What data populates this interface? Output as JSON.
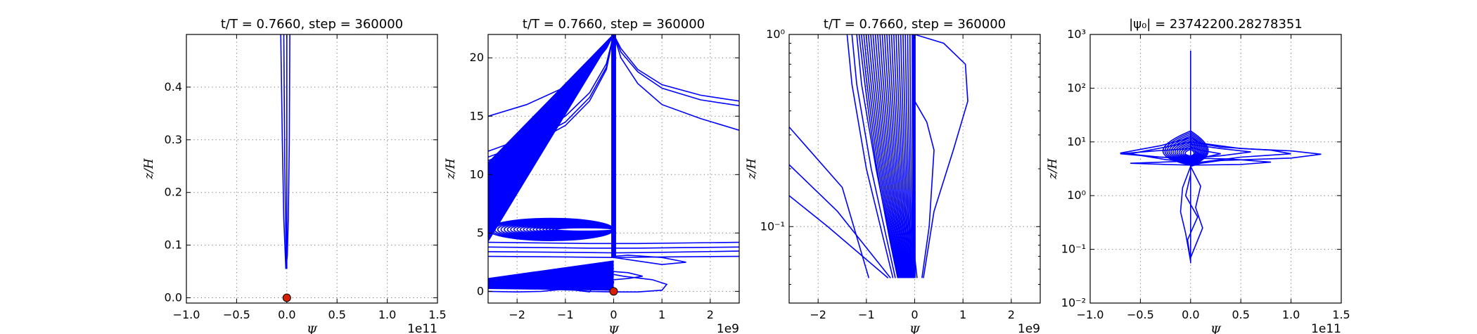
{
  "chart_data": [
    {
      "id": "p1",
      "type": "line",
      "title": "t/T = 0.7660, step = 360000",
      "xlabel": "Ψ",
      "ylabel": "z/H",
      "xscale": "linear",
      "yscale": "linear",
      "x_multiplier": "1e11",
      "xlim": [
        -1.0,
        1.5
      ],
      "ylim": [
        -0.01,
        0.5
      ],
      "xticks": [
        -1.0,
        -0.5,
        0.0,
        0.5,
        1.0,
        1.5
      ],
      "xticklabels": [
        "−1.0",
        "−0.5",
        "0.0",
        "0.5",
        "1.0",
        "1.5"
      ],
      "yticks": [
        0.0,
        0.1,
        0.2,
        0.3,
        0.4
      ],
      "yticklabels": [
        "0.0",
        "0.1",
        "0.2",
        "0.3",
        "0.4"
      ],
      "grid": true,
      "series_color": "#0000ff",
      "series": [
        {
          "x": [
            -0.06,
            -0.045,
            -0.03,
            -0.01
          ],
          "y": [
            0.5,
            0.3,
            0.15,
            0.055
          ]
        },
        {
          "x": [
            0.03,
            0.025,
            0.015,
            0.005,
            -0.01
          ],
          "y": [
            0.5,
            0.3,
            0.15,
            0.08,
            0.055
          ]
        },
        {
          "x": [
            -0.03,
            -0.02,
            -0.005
          ],
          "y": [
            0.5,
            0.25,
            0.06
          ]
        },
        {
          "x": [
            0.0,
            0.0
          ],
          "y": [
            0.5,
            0.055
          ]
        }
      ],
      "marker": {
        "x": 0.0,
        "y": 0.0,
        "color": "#d62000"
      }
    },
    {
      "id": "p2",
      "type": "line",
      "title": "t/T = 0.7660, step = 360000",
      "xlabel": "Ψ",
      "ylabel": "z/H",
      "xscale": "linear",
      "yscale": "linear",
      "x_multiplier": "1e9",
      "xlim": [
        -2.6,
        2.6
      ],
      "ylim": [
        -1.0,
        22.0
      ],
      "xticks": [
        -2,
        -1,
        0,
        1,
        2
      ],
      "xticklabels": [
        "−2",
        "−1",
        "0",
        "1",
        "2"
      ],
      "yticks": [
        0,
        5,
        10,
        15,
        20
      ],
      "yticklabels": [
        "0",
        "5",
        "10",
        "15",
        "20"
      ],
      "grid": true,
      "series_color": "#0000ff",
      "series": [
        {
          "x": [
            -2.6,
            -1.8,
            -1.0,
            -0.5,
            -0.15,
            0.0
          ],
          "y": [
            15.0,
            16.0,
            17.5,
            19.0,
            20.8,
            22.0
          ]
        },
        {
          "x": [
            -2.6,
            -1.8,
            -1.0,
            -0.5,
            -0.15,
            0.0
          ],
          "y": [
            12.0,
            13.2,
            15.0,
            17.0,
            19.5,
            22.0
          ]
        },
        {
          "x": [
            -2.6,
            -1.8,
            -1.0,
            -0.5,
            -0.15,
            0.0
          ],
          "y": [
            11.5,
            12.7,
            14.5,
            16.6,
            19.2,
            22.0
          ]
        },
        {
          "x": [
            -2.6,
            -1.8,
            -1.0,
            -0.5,
            -0.15,
            0.0
          ],
          "y": [
            11.2,
            12.4,
            14.2,
            16.3,
            19.0,
            22.0
          ]
        },
        {
          "x": [
            0.0,
            0.15,
            0.5,
            1.0,
            1.8,
            2.6
          ],
          "y": [
            22.0,
            20.8,
            19.0,
            17.7,
            16.8,
            16.3
          ]
        },
        {
          "x": [
            0.0,
            0.15,
            0.5,
            1.0,
            1.8,
            2.6
          ],
          "y": [
            22.0,
            20.5,
            18.8,
            17.4,
            16.4,
            15.9
          ]
        },
        {
          "x": [
            0.0,
            0.15,
            0.5,
            1.0,
            1.8,
            2.6
          ],
          "y": [
            22.0,
            20.0,
            17.8,
            16.0,
            14.8,
            13.8
          ]
        },
        {
          "x": [
            -2.6,
            -1.5,
            -0.5,
            0.0,
            0.5,
            1.5,
            2.6
          ],
          "y": [
            4.2,
            4.15,
            4.1,
            4.1,
            4.1,
            4.15,
            4.2
          ]
        },
        {
          "x": [
            -2.6,
            -1.5,
            -0.5,
            0.0,
            0.5,
            1.5,
            2.6
          ],
          "y": [
            3.8,
            3.75,
            3.7,
            3.7,
            3.7,
            3.75,
            3.8
          ]
        },
        {
          "x": [
            -2.6,
            -1.0,
            0.0,
            1.0,
            2.6
          ],
          "y": [
            3.4,
            3.35,
            3.3,
            3.35,
            3.45
          ]
        },
        {
          "x": [
            -2.6,
            -1.0,
            0.0,
            1.0,
            2.6
          ],
          "y": [
            3.0,
            2.95,
            2.9,
            2.95,
            3.0
          ]
        },
        {
          "x": [
            0.0,
            0.5,
            1.0,
            1.5,
            1.0,
            0.3,
            0.0
          ],
          "y": [
            2.9,
            2.6,
            2.3,
            2.5,
            2.9,
            3.1,
            3.0
          ]
        },
        {
          "x": [
            -2.6,
            -1.5,
            -0.8,
            -0.5,
            -0.4,
            -0.5,
            -0.7,
            -0.6,
            -0.3,
            0.0
          ],
          "y": [
            0.25,
            0.2,
            0.1,
            -0.05,
            0.5,
            0.9,
            0.8,
            0.6,
            1.0,
            2.0
          ]
        },
        {
          "x": [
            -2.6,
            -2.0,
            -1.5,
            -1.0
          ],
          "y": [
            0.0,
            -0.05,
            0.0,
            0.2
          ]
        },
        {
          "x": [
            -1.0,
            -0.5,
            0.0,
            0.5,
            1.0,
            1.1,
            0.8,
            0.2,
            -0.2
          ],
          "y": [
            0.2,
            0.0,
            -0.05,
            -0.05,
            0.1,
            0.6,
            1.0,
            1.3,
            1.6
          ]
        },
        {
          "x": [
            -0.3,
            0.0,
            0.3,
            0.6,
            0.3,
            0.0
          ],
          "y": [
            1.0,
            1.0,
            1.1,
            1.3,
            1.6,
            1.7
          ]
        }
      ],
      "dense_families": [
        {
          "kind": "linear_left",
          "count": 130,
          "z_low": [
            4.3,
            11.0
          ],
          "z_high": 22.0,
          "x_left": -2.6,
          "x_right": 0.0
        },
        {
          "kind": "ellipses_left",
          "count": 22,
          "center_z": 5.3,
          "x_left": -2.6,
          "x_right": 0.0,
          "half_height_max": 0.95
        },
        {
          "kind": "ellipses_bottom",
          "count": 14,
          "center": [
            -0.7,
            0.8
          ],
          "half_width_max": 0.7,
          "half_height_max": 0.5
        },
        {
          "kind": "wedge_bottom",
          "count": 40,
          "from": [
            -2.6,
            0.3
          ],
          "to": [
            0.0,
            2.5
          ]
        }
      ],
      "filled_band": {
        "x": [
          -0.05,
          0.05
        ],
        "y": [
          2.9,
          22.0
        ]
      },
      "marker": {
        "x": 0.0,
        "y": 0.0,
        "color": "#d62000"
      }
    },
    {
      "id": "p3",
      "type": "line",
      "title": "t/T = 0.7660, step = 360000",
      "xlabel": "Ψ",
      "ylabel": "z/H",
      "xscale": "linear",
      "yscale": "log",
      "x_multiplier": "1e9",
      "xlim": [
        -2.6,
        2.6
      ],
      "ylim": [
        0.04,
        1.0
      ],
      "xticks": [
        -2,
        -1,
        0,
        1,
        2
      ],
      "xticklabels": [
        "−2",
        "−1",
        "0",
        "1",
        "2"
      ],
      "yticks": [
        0.1,
        1.0
      ],
      "yticklabels": [
        "10⁻¹",
        "10⁰"
      ],
      "ylog_minor": [
        0.04,
        0.05,
        0.06,
        0.07,
        0.08,
        0.09,
        0.2,
        0.3,
        0.4,
        0.5,
        0.6,
        0.7,
        0.8,
        0.9
      ],
      "grid": true,
      "series_color": "#0000ff",
      "series": [
        {
          "x": [
            -2.6,
            -1.5,
            -0.95
          ],
          "y": [
            0.33,
            0.16,
            0.054
          ]
        },
        {
          "x": [
            -2.6,
            -1.6,
            -0.5
          ],
          "y": [
            0.21,
            0.12,
            0.054
          ]
        },
        {
          "x": [
            -2.6,
            -1.8,
            -0.55
          ],
          "y": [
            0.145,
            0.1,
            0.054
          ]
        },
        {
          "x": [
            -1.4,
            -1.3,
            -1.0,
            -0.45
          ],
          "y": [
            1.0,
            0.55,
            0.2,
            0.054
          ]
        },
        {
          "x": [
            -1.3,
            -1.2,
            -0.9,
            -0.4
          ],
          "y": [
            1.0,
            0.55,
            0.2,
            0.054
          ]
        },
        {
          "x": [
            -1.2,
            -1.1,
            -0.8,
            -0.35
          ],
          "y": [
            1.0,
            0.55,
            0.2,
            0.054
          ]
        },
        {
          "x": [
            0.0,
            0.6,
            1.05,
            1.1,
            0.8,
            0.4,
            0.18
          ],
          "y": [
            1.0,
            0.9,
            0.7,
            0.45,
            0.25,
            0.12,
            0.054
          ]
        },
        {
          "x": [
            0.0,
            0.25,
            0.4,
            0.3,
            0.15
          ],
          "y": [
            0.45,
            0.35,
            0.25,
            0.1,
            0.054
          ]
        },
        {
          "x": [
            0.0,
            0.05
          ],
          "y": [
            0.07,
            0.054
          ]
        }
      ],
      "dense_families": [
        {
          "kind": "fan_left",
          "count": 24,
          "x_top": [
            -1.15,
            -0.05
          ],
          "x_mid": [
            -0.85,
            -0.05
          ],
          "x_bottom": [
            -0.35,
            -0.02
          ],
          "y_top": 1.0,
          "y_mid": 0.2,
          "y_bottom": 0.054
        }
      ],
      "filled_band": {
        "x": [
          -0.05,
          0.02
        ],
        "y": [
          0.054,
          1.0
        ]
      }
    },
    {
      "id": "p4",
      "type": "line",
      "title": "|ψ₀| = 23742200.28278351",
      "xlabel": "Ψ",
      "ylabel": "z/H",
      "xscale": "linear",
      "yscale": "log",
      "x_multiplier": "1e11",
      "xlim": [
        -1.0,
        1.5
      ],
      "ylim": [
        0.01,
        1000.0
      ],
      "xticks": [
        -1.0,
        -0.5,
        0.0,
        0.5,
        1.0,
        1.5
      ],
      "xticklabels": [
        "−1.0",
        "−0.5",
        "0.0",
        "0.5",
        "1.0",
        "1.5"
      ],
      "yticks": [
        0.01,
        0.1,
        1.0,
        10.0,
        100.0,
        1000.0
      ],
      "yticklabels": [
        "10⁻²",
        "10⁻¹",
        "10⁰",
        "10¹",
        "10²",
        "10³"
      ],
      "grid": true,
      "series_color": "#0000ff",
      "series": [
        {
          "x": [
            0.0,
            0.0
          ],
          "y": [
            0.055,
            500.0
          ]
        },
        {
          "x": [
            0.0,
            0.1,
            0.5,
            1.0,
            1.3,
            1.0,
            0.3,
            0.1,
            0.0
          ],
          "y": [
            12.0,
            9.5,
            7.5,
            6.8,
            5.9,
            5.0,
            4.5,
            4.0,
            3.5
          ]
        },
        {
          "x": [
            0.0,
            0.3,
            0.8,
            1.0,
            0.5,
            0.1,
            0.0
          ],
          "y": [
            10.0,
            8.0,
            7.0,
            6.0,
            5.2,
            4.2,
            3.6
          ]
        },
        {
          "x": [
            0.0,
            -0.3,
            -0.7,
            -0.3,
            0.0,
            0.4,
            0.8,
            0.5,
            0.0
          ],
          "y": [
            12.0,
            8.5,
            6.2,
            5.2,
            5.0,
            4.8,
            4.2,
            3.8,
            3.7
          ]
        },
        {
          "x": [
            0.0,
            -0.25,
            -0.6,
            -0.25,
            0.0
          ],
          "y": [
            10.0,
            8.0,
            6.0,
            4.7,
            4.2
          ]
        },
        {
          "x": [
            0.0,
            0.3,
            0.6,
            0.3,
            0.0
          ],
          "y": [
            9.0,
            7.5,
            6.5,
            5.5,
            5.0
          ]
        },
        {
          "x": [
            0.0,
            0.1,
            0.3,
            0.1,
            0.0
          ],
          "y": [
            8.0,
            7.0,
            6.0,
            5.0,
            4.5
          ]
        },
        {
          "x": [
            0.0,
            -0.35,
            -0.7,
            -0.35,
            0.0
          ],
          "y": [
            7.5,
            6.8,
            6.0,
            5.3,
            4.8
          ]
        },
        {
          "x": [
            0.0,
            -0.15,
            -0.6,
            -0.25,
            0.0
          ],
          "y": [
            4.8,
            4.3,
            4.0,
            3.8,
            3.7
          ]
        },
        {
          "x": [
            0.0,
            0.05,
            0.15,
            0.05,
            0.0
          ],
          "y": [
            8.0,
            6.5,
            5.2,
            4.3,
            3.8
          ]
        },
        {
          "x": [
            0.0,
            0.1,
            0.05,
            0.12,
            0.0
          ],
          "y": [
            3.5,
            1.5,
            0.6,
            0.25,
            0.07
          ]
        },
        {
          "x": [
            0.0,
            -0.08,
            -0.1,
            -0.05,
            0.0
          ],
          "y": [
            3.5,
            1.4,
            0.5,
            0.2,
            0.06
          ]
        },
        {
          "x": [
            0.0,
            -0.05,
            0.07,
            -0.03,
            0.0
          ],
          "y": [
            2.5,
            1.0,
            0.4,
            0.15,
            0.06
          ]
        }
      ],
      "dense_families": [
        {
          "kind": "loops",
          "count": 12,
          "center_x": 0.0,
          "center_y": 6.0,
          "x_extent": [
            -0.55,
            0.35
          ],
          "y_extent": [
            3.7,
            16.0
          ]
        }
      ]
    }
  ]
}
